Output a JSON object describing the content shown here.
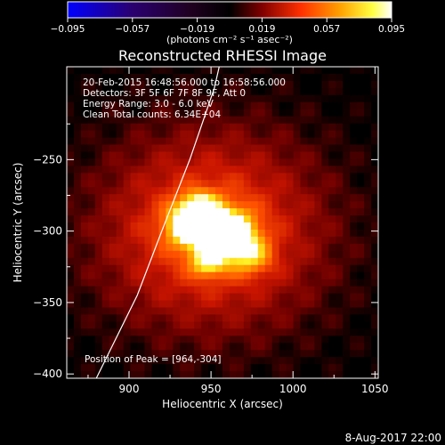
{
  "colorbar": {
    "ticks": [
      "−0.095",
      "−0.057",
      "−0.019",
      "0.019",
      "0.057",
      "0.095"
    ],
    "unit_label": "(photons cm⁻² s⁻¹ asec⁻²)"
  },
  "chart_data": {
    "type": "heatmap",
    "title": "Reconstructed RHESSI Image",
    "xlabel": "Heliocentric X (arcsec)",
    "ylabel": "Heliocentric Y (arcsec)",
    "xlim": [
      862,
      1052
    ],
    "ylim": [
      -403,
      -185
    ],
    "x_ticks": [
      900,
      950,
      1000,
      1050
    ],
    "y_ticks": [
      -250,
      -300,
      -350,
      -400
    ],
    "x_tick_labels": [
      "900",
      "950",
      "1000",
      "1050"
    ],
    "y_tick_labels": [
      "−250",
      "−300",
      "−350",
      "−400"
    ],
    "color_range": [
      -0.095,
      0.095
    ],
    "colormap": [
      "#0000ff",
      "#2a0070",
      "#000000",
      "#880000",
      "#ff3000",
      "#ffa000",
      "#ffff00",
      "#ffffff"
    ],
    "peak": [
      964,
      -304
    ],
    "limb_points": [
      [
        880,
        -403
      ],
      [
        905,
        -345
      ],
      [
        920,
        -300
      ],
      [
        937,
        -250
      ],
      [
        952,
        -200
      ],
      [
        955,
        -185
      ]
    ],
    "sources": [
      {
        "x": 960,
        "y": -302,
        "sigma": 11,
        "amp": 0.09
      },
      {
        "x": 938,
        "y": -296,
        "sigma": 10,
        "amp": 0.075
      },
      {
        "x": 943,
        "y": -284,
        "sigma": 8,
        "amp": 0.05
      },
      {
        "x": 948,
        "y": -322,
        "sigma": 7,
        "amp": 0.045
      },
      {
        "x": 975,
        "y": -318,
        "sigma": 9,
        "amp": 0.035
      },
      {
        "x": 950,
        "y": -300,
        "sigma": 45,
        "amp": 0.055
      }
    ],
    "annotations": [
      "20-Feb-2015 16:48:56.000 to 16:58:56.000",
      "Detectors: 3F 5F 6F 7F 8F 9F, Att 0",
      "Energy Range: 3.0 - 6.0 keV",
      "Clean    Total counts: 6.34E+04"
    ],
    "peak_label": "Position of Peak = [964,-304]"
  },
  "footer": {
    "date": "8-Aug-2017 22:00"
  }
}
